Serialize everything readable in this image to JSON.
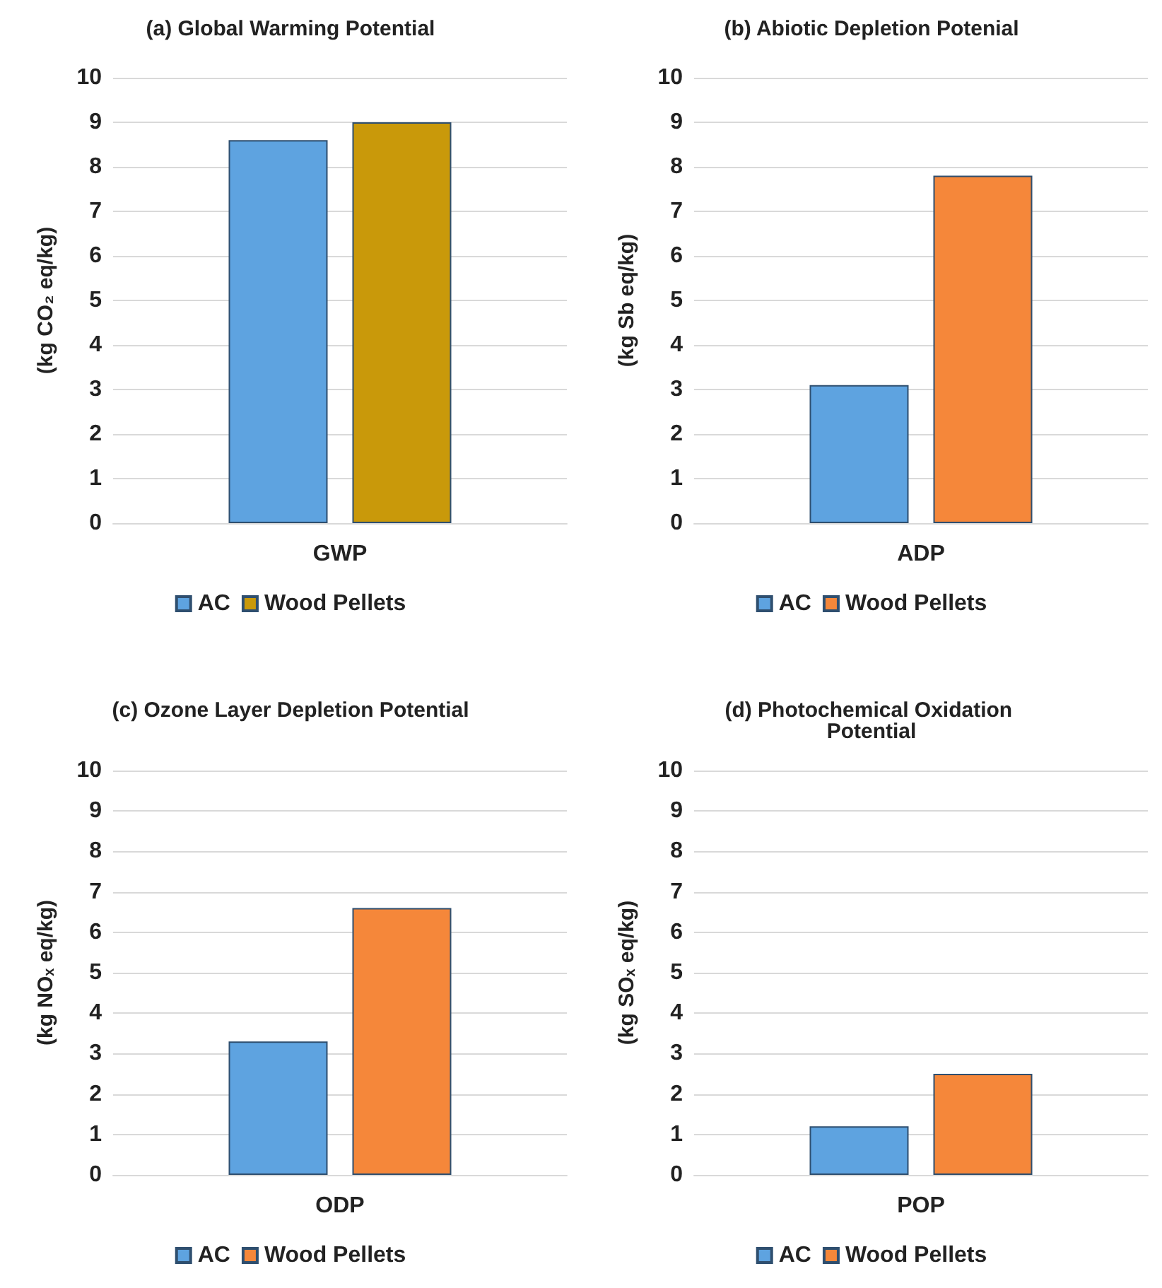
{
  "chart_data": [
    {
      "type": "bar",
      "title": "(a) Global Warming Potential",
      "ylabel": "(kg CO₂ eq/kg)",
      "categories": [
        "GWP"
      ],
      "series": [
        {
          "name": "AC",
          "color": "#5ea3e0",
          "values": [
            8.6
          ]
        },
        {
          "name": "Wood Pellets",
          "color": "#c9990a",
          "values": [
            9.0
          ]
        }
      ],
      "ylim": [
        0,
        10
      ],
      "yticks": [
        0,
        1,
        2,
        3,
        4,
        5,
        6,
        7,
        8,
        9,
        10
      ],
      "grid": "y",
      "legend": "bottom"
    },
    {
      "type": "bar",
      "title": "(b) Abiotic Depletion Potenial",
      "ylabel": "(kg Sb eq/kg)",
      "categories": [
        "ADP"
      ],
      "series": [
        {
          "name": "AC",
          "color": "#5ea3e0",
          "values": [
            3.1
          ]
        },
        {
          "name": "Wood Pellets",
          "color": "#f5873a",
          "values": [
            7.8
          ]
        }
      ],
      "ylim": [
        0,
        10
      ],
      "yticks": [
        0,
        1,
        2,
        3,
        4,
        5,
        6,
        7,
        8,
        9,
        10
      ],
      "grid": "y",
      "legend": "bottom"
    },
    {
      "type": "bar",
      "title": "(c) Ozone Layer Depletion Potential",
      "ylabel": "(kg NOₓ eq/kg)",
      "categories": [
        "ODP"
      ],
      "series": [
        {
          "name": "AC",
          "color": "#5ea3e0",
          "values": [
            3.3
          ]
        },
        {
          "name": "Wood Pellets",
          "color": "#f5873a",
          "values": [
            6.6
          ]
        }
      ],
      "ylim": [
        0,
        10
      ],
      "yticks": [
        0,
        1,
        2,
        3,
        4,
        5,
        6,
        7,
        8,
        9,
        10
      ],
      "grid": "y",
      "legend": "bottom"
    },
    {
      "type": "bar",
      "title": "(d) Photochemical Oxidation Potential",
      "ylabel": "(kg SOₓ eq/kg)",
      "categories": [
        "POP"
      ],
      "series": [
        {
          "name": "AC",
          "color": "#5ea3e0",
          "values": [
            1.2
          ]
        },
        {
          "name": "Wood Pellets",
          "color": "#f5873a",
          "values": [
            2.5
          ]
        }
      ],
      "ylim": [
        0,
        10
      ],
      "yticks": [
        0,
        1,
        2,
        3,
        4,
        5,
        6,
        7,
        8,
        9,
        10
      ],
      "grid": "y",
      "legend": "bottom"
    }
  ]
}
